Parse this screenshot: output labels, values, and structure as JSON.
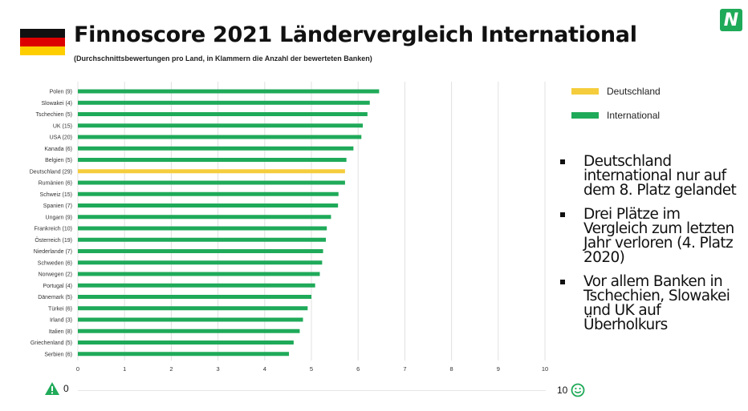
{
  "title": "Finnoscore 2021 Ländervergleich International",
  "subtitle": "(Durchschnittsbewertungen  pro Land, in Klammern  die Anzahl  der bewerteten  Banken)",
  "logo_letter": "N",
  "colors": {
    "highlight": "#f5cd3c",
    "international": "#1faa59",
    "logo": "#1faa59",
    "flag_black": "#111111",
    "flag_red": "#dd0000",
    "flag_gold": "#ffce00",
    "grid": "#e0e0e0"
  },
  "legend": [
    {
      "label": "Deutschland",
      "color": "#f5cd3c"
    },
    {
      "label": "International",
      "color": "#1faa59"
    }
  ],
  "bullets": [
    "Deutschland international nur auf dem 8. Platz gelandet",
    "Drei Plätze im Vergleich zum letzten Jahr verloren (4. Platz 2020)",
    "Vor allem Banken in Tschechien, Slowakei und UK auf Überholkurs"
  ],
  "scale": {
    "low": "0",
    "high": "10",
    "low_icon": "warning-icon",
    "high_icon": "smiley-icon"
  },
  "chart_data": {
    "type": "bar",
    "orientation": "horizontal",
    "categories": [
      "Polen (9)",
      "Slowakei (4)",
      "Tschechien (5)",
      "UK (15)",
      "USA (20)",
      "Kanada (6)",
      "Belgien (5)",
      "Deutschland (29)",
      "Rumänien (6)",
      "Schweiz (15)",
      "Spanien (7)",
      "Ungarn (9)",
      "Frankreich (10)",
      "Österreich (19)",
      "Niederlande (7)",
      "Schweden (6)",
      "Norwegen (2)",
      "Portugal (4)",
      "Dänemark (5)",
      "Türkei (6)",
      "Irland (3)",
      "Italien (8)",
      "Griechenland (5)",
      "Serbien (6)"
    ],
    "values": [
      6.45,
      6.25,
      6.2,
      6.1,
      6.07,
      5.9,
      5.75,
      5.72,
      5.72,
      5.58,
      5.57,
      5.42,
      5.33,
      5.31,
      5.25,
      5.23,
      5.18,
      5.08,
      5.0,
      4.92,
      4.82,
      4.75,
      4.62,
      4.52
    ],
    "highlight": "Deutschland (29)",
    "xlim": [
      0,
      10
    ],
    "xticks": [
      "0",
      "1",
      "2",
      "3",
      "4",
      "5",
      "6",
      "7",
      "8",
      "9",
      "10"
    ],
    "grid": true,
    "legend_position": "right"
  }
}
